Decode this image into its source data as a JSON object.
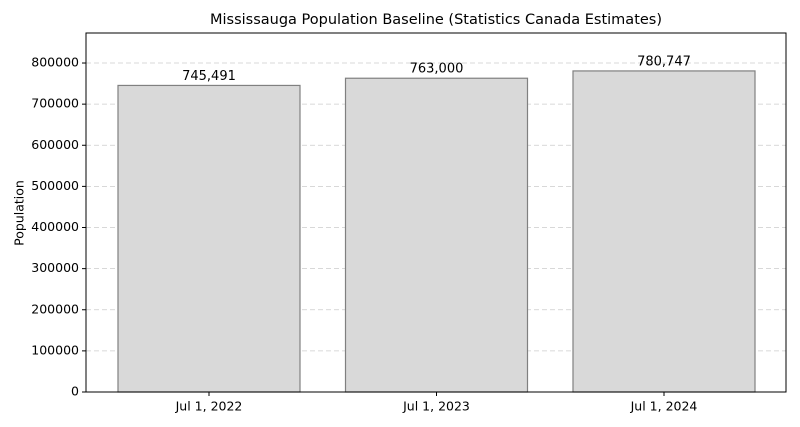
{
  "chart_data": {
    "type": "bar",
    "title": "Mississauga Population Baseline (Statistics Canada Estimates)",
    "y_label": "Population",
    "categories": [
      "Jul 1, 2022",
      "Jul 1, 2023",
      "Jul 1, 2024"
    ],
    "values": [
      745491,
      763000,
      780747
    ],
    "value_labels": [
      "745,491",
      "763,000",
      "780,747"
    ],
    "color": "#d9d9d9",
    "edge_color": "#808080",
    "ylim": [
      0,
      873000
    ],
    "yticks": [
      0,
      100000,
      200000,
      300000,
      400000,
      500000,
      600000,
      700000,
      800000
    ],
    "grid": true
  }
}
